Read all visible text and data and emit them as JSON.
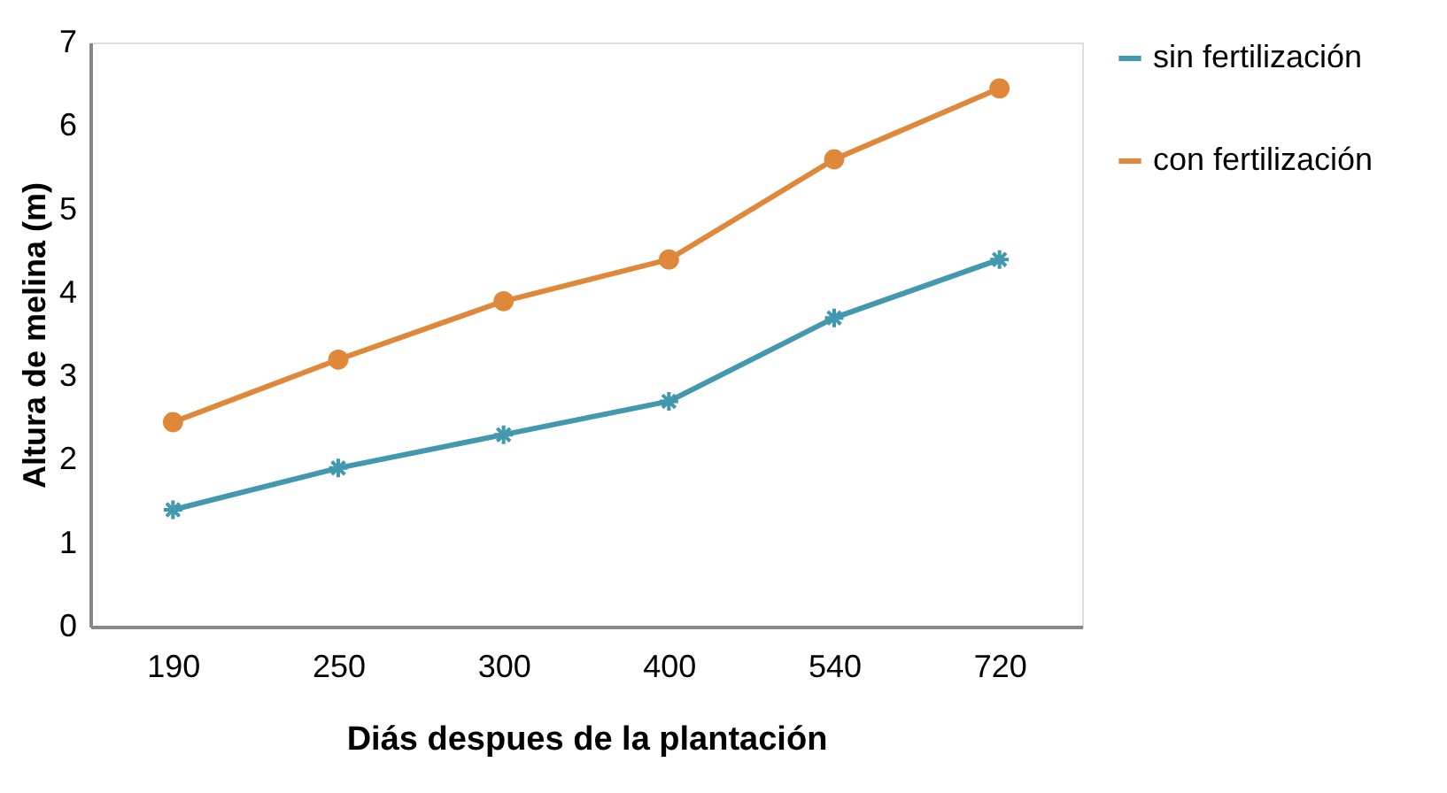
{
  "chart_data": {
    "type": "line",
    "xlabel": "Diás despues de la plantación",
    "ylabel": "Altura de melina  (m)",
    "categories": [
      "190",
      "250",
      "300",
      "400",
      "540",
      "720"
    ],
    "series": [
      {
        "name": "sin fertilización",
        "color": "#4298ae",
        "marker": "cross",
        "values": [
          1.4,
          1.9,
          2.3,
          2.7,
          3.7,
          4.4
        ]
      },
      {
        "name": "con fertilización",
        "color": "#e0883a",
        "marker": "circle",
        "values": [
          2.45,
          3.2,
          3.9,
          4.4,
          5.6,
          6.45
        ]
      }
    ],
    "ylim": [
      0,
      7
    ],
    "yticks": [
      0,
      1,
      2,
      3,
      4,
      5,
      6,
      7
    ],
    "grid": false,
    "legend": "right",
    "line_style": "solid"
  }
}
